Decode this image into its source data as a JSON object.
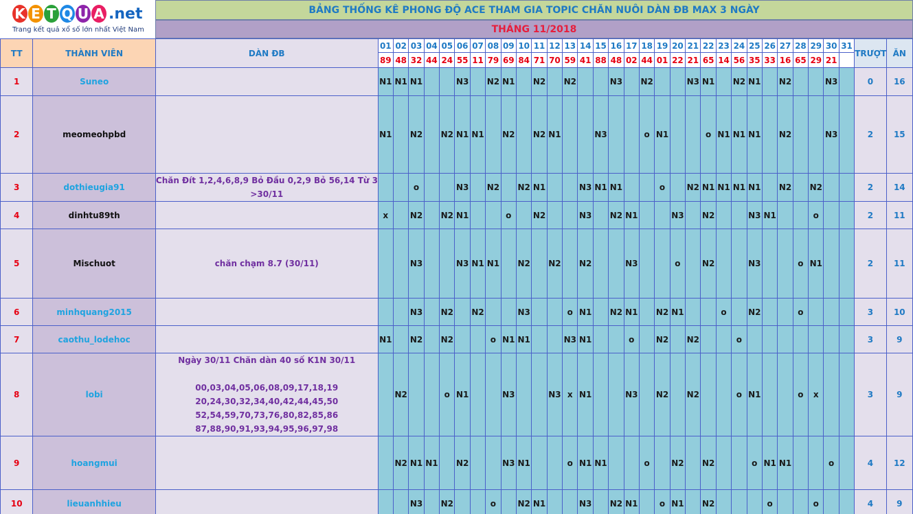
{
  "logo": {
    "letters": [
      "K",
      "E",
      "T",
      "Q",
      "U",
      "A"
    ],
    "colors": [
      "#e8332a",
      "#f39200",
      "#2aa13a",
      "#1e88e5",
      "#8e24aa",
      "#e91e63"
    ],
    "net": ".net",
    "tagline": "Trang kết quả xổ số lớn nhất Việt Nam"
  },
  "title": "BẢNG THỐNG KÊ PHONG ĐỘ ACE THAM GIA TOPIC CHĂN NUÔI DÀN ĐB MAX 3 NGÀY",
  "month": "THÁNG 11/2018",
  "headers": {
    "tt": "TT",
    "name": "THÀNH VIÊN",
    "dan": "DÀN ĐB",
    "truot": "TRƯỢT",
    "an": "ĂN"
  },
  "days": [
    "01",
    "02",
    "03",
    "04",
    "05",
    "06",
    "07",
    "08",
    "09",
    "10",
    "11",
    "12",
    "13",
    "14",
    "15",
    "16",
    "17",
    "18",
    "19",
    "20",
    "21",
    "22",
    "23",
    "24",
    "25",
    "26",
    "27",
    "28",
    "29",
    "30",
    "31"
  ],
  "results": [
    "89",
    "48",
    "32",
    "44",
    "24",
    "55",
    "11",
    "79",
    "69",
    "84",
    "71",
    "70",
    "59",
    "41",
    "88",
    "48",
    "02",
    "44",
    "01",
    "22",
    "21",
    "65",
    "14",
    "56",
    "35",
    "33",
    "16",
    "65",
    "29",
    "21",
    ""
  ],
  "rows": [
    {
      "tt": "1",
      "name": "Suneo",
      "name_color": "blue",
      "dan": [],
      "truot": "0",
      "an": "16",
      "marks": [
        "N1",
        "N1",
        "N1",
        "",
        "",
        "N3",
        "",
        "N2",
        "N1",
        "",
        "N2",
        "",
        "N2",
        "",
        "",
        "N3",
        "",
        "N2",
        "",
        "",
        "N3",
        "N1",
        "",
        "N2",
        "N1",
        "",
        "N2",
        "",
        "",
        "N3",
        ""
      ]
    },
    {
      "tt": "2",
      "name": "meomeohpbd",
      "name_color": "black",
      "dan": [],
      "truot": "2",
      "an": "15",
      "marks": [
        "N1",
        "",
        "N2",
        "",
        "N2",
        "N1",
        "N1",
        "",
        "N2",
        "",
        "N2",
        "N1",
        "",
        "",
        "N3",
        "",
        "",
        "o",
        "N1",
        "",
        "",
        "o",
        "N1",
        "N1",
        "N1",
        "",
        "N2",
        "",
        "",
        "N3",
        ""
      ]
    },
    {
      "tt": "3",
      "name": "dothieugia91",
      "name_color": "blue",
      "dan": [
        "Chăn Đít 1,2,4,6,8,9 Bỏ Đầu 0,2,9 Bỏ 56,14 Từ 30/11 -",
        ">30/11"
      ],
      "truot": "2",
      "an": "14",
      "marks": [
        "",
        "",
        "o",
        "",
        "",
        "N3",
        "",
        "N2",
        "",
        "N2",
        "N1",
        "",
        "",
        "N3",
        "N1",
        "N1",
        "",
        "",
        "o",
        "",
        "N2",
        "N1",
        "N1",
        "N1",
        "N1",
        "",
        "N2",
        "",
        "N2",
        "",
        ""
      ]
    },
    {
      "tt": "4",
      "name": "dinhtu89th",
      "name_color": "black",
      "dan": [],
      "truot": "2",
      "an": "11",
      "marks": [
        "x",
        "",
        "N2",
        "",
        "N2",
        "N1",
        "",
        "",
        "o",
        "",
        "N2",
        "",
        "",
        "N3",
        "",
        "N2",
        "N1",
        "",
        "",
        "N3",
        "",
        "N2",
        "",
        "",
        "N3",
        "N1",
        "",
        "",
        "o",
        "",
        ""
      ]
    },
    {
      "tt": "5",
      "name": "Mischuot",
      "name_color": "black",
      "dan": [
        "chăn chạm 8.7 (30/11)"
      ],
      "truot": "2",
      "an": "11",
      "marks": [
        "",
        "",
        "N3",
        "",
        "",
        "N3",
        "N1",
        "N1",
        "",
        "N2",
        "",
        "N2",
        "",
        "N2",
        "",
        "",
        "N3",
        "",
        "",
        "o",
        "",
        "N2",
        "",
        "",
        "N3",
        "",
        "",
        "o",
        "N1",
        "",
        ""
      ]
    },
    {
      "tt": "6",
      "name": "minhquang2015",
      "name_color": "blue",
      "dan": [],
      "truot": "3",
      "an": "10",
      "marks": [
        "",
        "",
        "N3",
        "",
        "N2",
        "",
        "N2",
        "",
        "",
        "N3",
        "",
        "",
        "o",
        "N1",
        "",
        "N2",
        "N1",
        "",
        "N2",
        "N1",
        "",
        "",
        "o",
        "",
        "N2",
        "",
        "",
        "o",
        "",
        "",
        ""
      ]
    },
    {
      "tt": "7",
      "name": "caothu_lodehoc",
      "name_color": "blue",
      "dan": [],
      "truot": "3",
      "an": "9",
      "marks": [
        "N1",
        "",
        "N2",
        "",
        "N2",
        "",
        "",
        "o",
        "N1",
        "N1",
        "",
        "",
        "N3",
        "N1",
        "",
        "",
        "o",
        "",
        "N2",
        "",
        "N2",
        "",
        "",
        "o",
        "",
        "",
        "",
        "",
        "",
        "",
        ""
      ]
    },
    {
      "tt": "8",
      "name": "lobi",
      "name_color": "blue",
      "dan": [
        "Ngày 30/11 Chăn dàn 40 số K1N 30/11",
        "",
        "00,03,04,05,06,08,09,17,18,19",
        "20,24,30,32,34,40,42,44,45,50",
        "52,54,59,70,73,76,80,82,85,86",
        "87,88,90,91,93,94,95,96,97,98"
      ],
      "truot": "3",
      "an": "9",
      "marks": [
        "",
        "N2",
        "",
        "",
        "o",
        "N1",
        "",
        "",
        "N3",
        "",
        "",
        "N3",
        "x",
        "N1",
        "",
        "",
        "N3",
        "",
        "N2",
        "",
        "N2",
        "",
        "",
        "o",
        "N1",
        "",
        "",
        "o",
        "x",
        "",
        ""
      ]
    },
    {
      "tt": "9",
      "name": "hoangmui",
      "name_color": "blue",
      "dan": [],
      "truot": "4",
      "an": "12",
      "marks": [
        "",
        "N2",
        "N1",
        "N1",
        "",
        "N2",
        "",
        "",
        "N3",
        "N1",
        "",
        "",
        "o",
        "N1",
        "N1",
        "",
        "",
        "o",
        "",
        "N2",
        "",
        "N2",
        "",
        "",
        "o",
        "N1",
        "N1",
        "",
        "",
        "o",
        ""
      ]
    },
    {
      "tt": "10",
      "name": "lieuanhhieu",
      "name_color": "blue",
      "dan": [],
      "truot": "4",
      "an": "9",
      "marks": [
        "",
        "",
        "N3",
        "",
        "N2",
        "",
        "",
        "o",
        "",
        "N2",
        "N1",
        "",
        "",
        "N3",
        "",
        "N2",
        "N1",
        "",
        "o",
        "N1",
        "",
        "N2",
        "",
        "",
        "",
        "o",
        "",
        "",
        "o",
        "",
        ""
      ]
    }
  ]
}
